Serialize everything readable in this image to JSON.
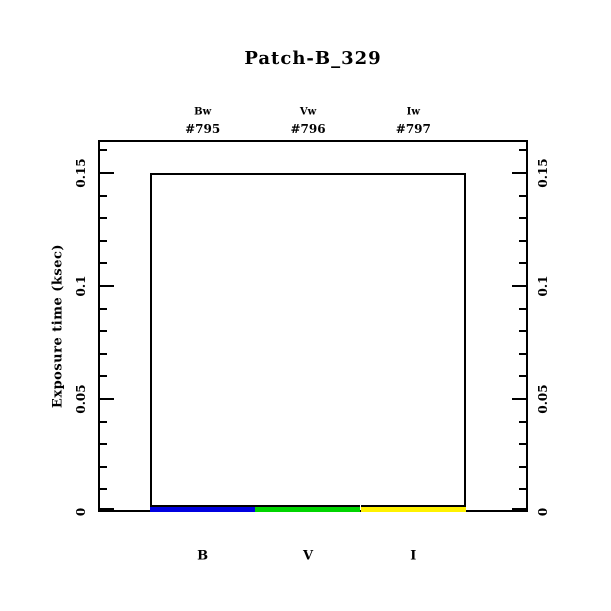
{
  "title": "Patch-B_329",
  "y_axis": {
    "label": "Exposure time (ksec)",
    "ticks": [
      "0",
      "0.05",
      "0.1",
      "0.15"
    ]
  },
  "top_axis": {
    "filters": [
      {
        "name": "Bw",
        "id": "#795"
      },
      {
        "name": "Vw",
        "id": "#796"
      },
      {
        "name": "Iw",
        "id": "#797"
      }
    ]
  },
  "x_axis": {
    "labels": [
      "B",
      "V",
      "I"
    ]
  },
  "colors": {
    "bar_blue": "#0000e0",
    "bar_green": "#00d500",
    "bar_yellow": "#fff200",
    "axis": "#000000",
    "background": "#ffffff"
  },
  "chart_data": {
    "type": "bar",
    "title": "Patch-B_329",
    "ylabel": "Exposure time (ksec)",
    "categories": [
      "B",
      "V",
      "I"
    ],
    "series": [
      {
        "name": "exposure_time_ksec",
        "values": [
          0.002,
          0.002,
          0.002
        ]
      }
    ],
    "bar_colors": [
      "#0000e0",
      "#00d500",
      "#fff200"
    ],
    "filter_names": [
      "Bw",
      "Vw",
      "Iw"
    ],
    "exposure_ids": [
      "#795",
      "#796",
      "#797"
    ],
    "outline_level": 0.15,
    "ylim": [
      0,
      0.165
    ],
    "yticks": [
      0,
      0.05,
      0.1,
      0.15
    ],
    "minor_tick_step": 0.01,
    "grid": false,
    "legend": false
  }
}
